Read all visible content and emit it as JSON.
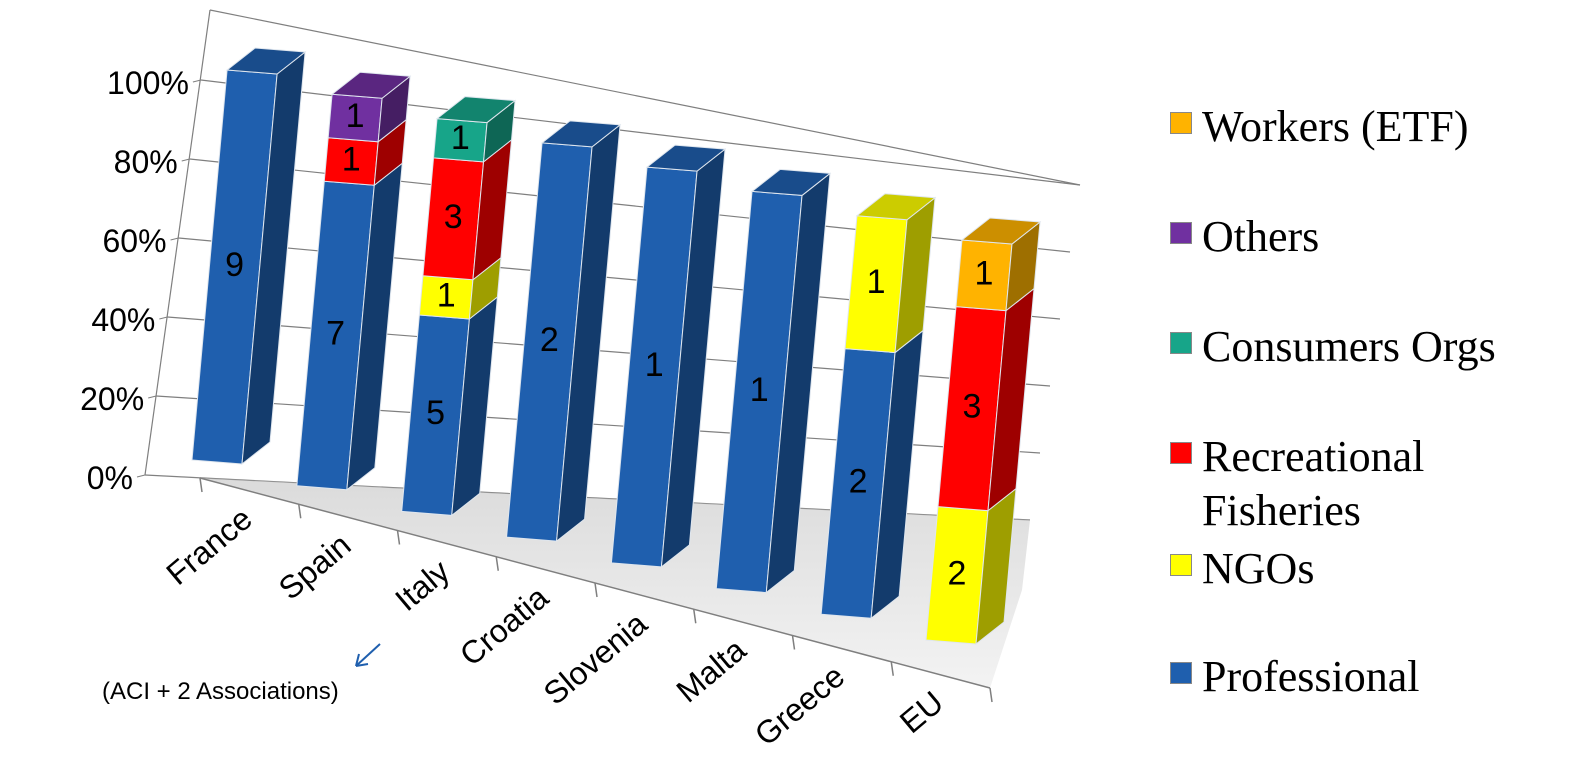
{
  "chart_data": {
    "type": "bar",
    "stacked": "percent",
    "three_d": true,
    "categories": [
      "France",
      "Spain",
      "Italy",
      "Croatia",
      "Slovenia",
      "Malta",
      "Greece",
      "EU"
    ],
    "yticks": [
      "0%",
      "20%",
      "40%",
      "60%",
      "80%",
      "100%"
    ],
    "ylim": [
      0,
      100
    ],
    "series": [
      {
        "name": "Professional",
        "color": "#1F5FAE",
        "values": [
          9,
          7,
          5,
          2,
          1,
          1,
          2,
          0
        ]
      },
      {
        "name": "NGOs",
        "color": "#FFFF00",
        "values": [
          0,
          0,
          1,
          0,
          0,
          0,
          1,
          2
        ]
      },
      {
        "name": "Recreational Fisheries",
        "color": "#FF0000",
        "values": [
          0,
          1,
          3,
          0,
          0,
          0,
          0,
          3
        ]
      },
      {
        "name": "Consumers Orgs",
        "color": "#17A589",
        "values": [
          0,
          0,
          1,
          0,
          0,
          0,
          0,
          0
        ]
      },
      {
        "name": "Others",
        "color": "#7030A0",
        "values": [
          0,
          1,
          0,
          0,
          0,
          0,
          0,
          0
        ]
      },
      {
        "name": "Workers (ETF)",
        "color": "#FFB300",
        "values": [
          0,
          0,
          0,
          0,
          0,
          0,
          0,
          1
        ]
      }
    ],
    "annotation": "(ACI + 2 Associations)",
    "grid": true,
    "legend_position": "right"
  },
  "legend": [
    {
      "label": "Workers (ETF)",
      "color": "#FFB300"
    },
    {
      "label": "Others",
      "color": "#7030A0"
    },
    {
      "label": "Consumers Orgs",
      "color": "#17A589"
    },
    {
      "label": "Recreational\nFisheries",
      "color": "#FF0000"
    },
    {
      "label": "NGOs",
      "color": "#FFFF00"
    },
    {
      "label": "Professional",
      "color": "#1F5FAE"
    }
  ]
}
